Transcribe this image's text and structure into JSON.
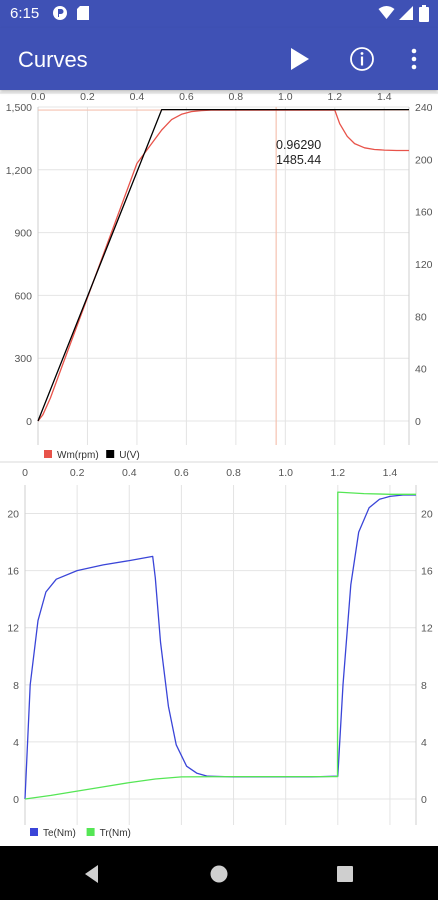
{
  "status_bar": {
    "time": "6:15",
    "icons": [
      "app-notification-icon",
      "sd-card-icon",
      "wifi-icon",
      "signal-icon",
      "battery-icon"
    ]
  },
  "app_bar": {
    "title": "Curves",
    "actions": [
      "play-icon",
      "info-icon",
      "more-vert-icon"
    ]
  },
  "colors": {
    "primary": "#3f51b5",
    "wm": "#e8534a",
    "u": "#000000",
    "te": "#3a45d8",
    "tr": "#55e655",
    "cursor": "#f5c2b0"
  },
  "nav_bar": {
    "buttons": [
      "back-icon",
      "home-icon",
      "recents-icon"
    ]
  },
  "chart_data": [
    {
      "type": "line",
      "x_ticks": [
        "0.0",
        "0.2",
        "0.4",
        "0.6",
        "0.8",
        "1.0",
        "1.2",
        "1.4"
      ],
      "xlim": [
        0,
        1.5
      ],
      "y_left_ticks": [
        "0",
        "300",
        "600",
        "900",
        "1,200",
        "1,500"
      ],
      "ylim_left": [
        0,
        1500
      ],
      "y_right_ticks": [
        "0",
        "40",
        "80",
        "120",
        "160",
        "200",
        "240"
      ],
      "ylim_right": [
        0,
        240
      ],
      "grid": true,
      "legend_placement": "bottom-left",
      "series": [
        {
          "name": "Wm(rpm)",
          "axis": "left",
          "x": [
            0,
            0.02,
            0.05,
            0.1,
            0.2,
            0.3,
            0.4,
            0.5,
            0.54,
            0.58,
            0.62,
            0.66,
            0.7,
            0.8,
            0.9,
            1.0,
            1.1,
            1.2,
            1.22,
            1.25,
            1.28,
            1.32,
            1.36,
            1.4,
            1.45,
            1.5
          ],
          "y": [
            0,
            30,
            110,
            270,
            590,
            910,
            1230,
            1390,
            1440,
            1465,
            1478,
            1483,
            1485,
            1485,
            1485,
            1485,
            1485,
            1485,
            1420,
            1360,
            1325,
            1305,
            1297,
            1294,
            1292,
            1292
          ]
        },
        {
          "name": "U(V)",
          "axis": "right",
          "x": [
            0,
            0.5,
            1.5
          ],
          "y": [
            0,
            238,
            238
          ]
        }
      ],
      "cursor": {
        "x": 0.9629,
        "y": 1485.44,
        "x_label": "0.96290",
        "y_label": "1485.44"
      }
    },
    {
      "type": "line",
      "x_ticks": [
        "0",
        "0.2",
        "0.4",
        "0.6",
        "0.8",
        "1.0",
        "1.2",
        "1.4"
      ],
      "xlim": [
        0,
        1.5
      ],
      "y_left_ticks": [
        "0",
        "4",
        "8",
        "12",
        "16",
        "20"
      ],
      "ylim_left": [
        0,
        22
      ],
      "y_right_ticks": [
        "0",
        "4",
        "8",
        "12",
        "16",
        "20"
      ],
      "ylim_right": [
        0,
        22
      ],
      "grid": true,
      "legend_placement": "bottom-left",
      "series": [
        {
          "name": "Te(Nm)",
          "axis": "left",
          "x": [
            0,
            0.02,
            0.05,
            0.08,
            0.12,
            0.2,
            0.3,
            0.4,
            0.49,
            0.5,
            0.52,
            0.55,
            0.58,
            0.62,
            0.66,
            0.7,
            0.8,
            0.9,
            1.0,
            1.1,
            1.2,
            1.22,
            1.25,
            1.28,
            1.32,
            1.36,
            1.4,
            1.45,
            1.5
          ],
          "y": [
            0,
            8,
            12.5,
            14.5,
            15.4,
            16.0,
            16.4,
            16.7,
            17.0,
            15.5,
            11.0,
            6.5,
            3.8,
            2.3,
            1.8,
            1.6,
            1.55,
            1.55,
            1.55,
            1.55,
            1.6,
            8.0,
            15.0,
            18.7,
            20.4,
            21.0,
            21.2,
            21.3,
            21.3
          ]
        },
        {
          "name": "Tr(Nm)",
          "axis": "left",
          "x": [
            0,
            0.1,
            0.2,
            0.3,
            0.4,
            0.5,
            0.6,
            0.8,
            1.0,
            1.199,
            1.2,
            1.3,
            1.4,
            1.5
          ],
          "y": [
            0,
            0.25,
            0.55,
            0.85,
            1.15,
            1.4,
            1.55,
            1.57,
            1.57,
            1.57,
            21.5,
            21.4,
            21.35,
            21.35
          ]
        }
      ]
    }
  ]
}
